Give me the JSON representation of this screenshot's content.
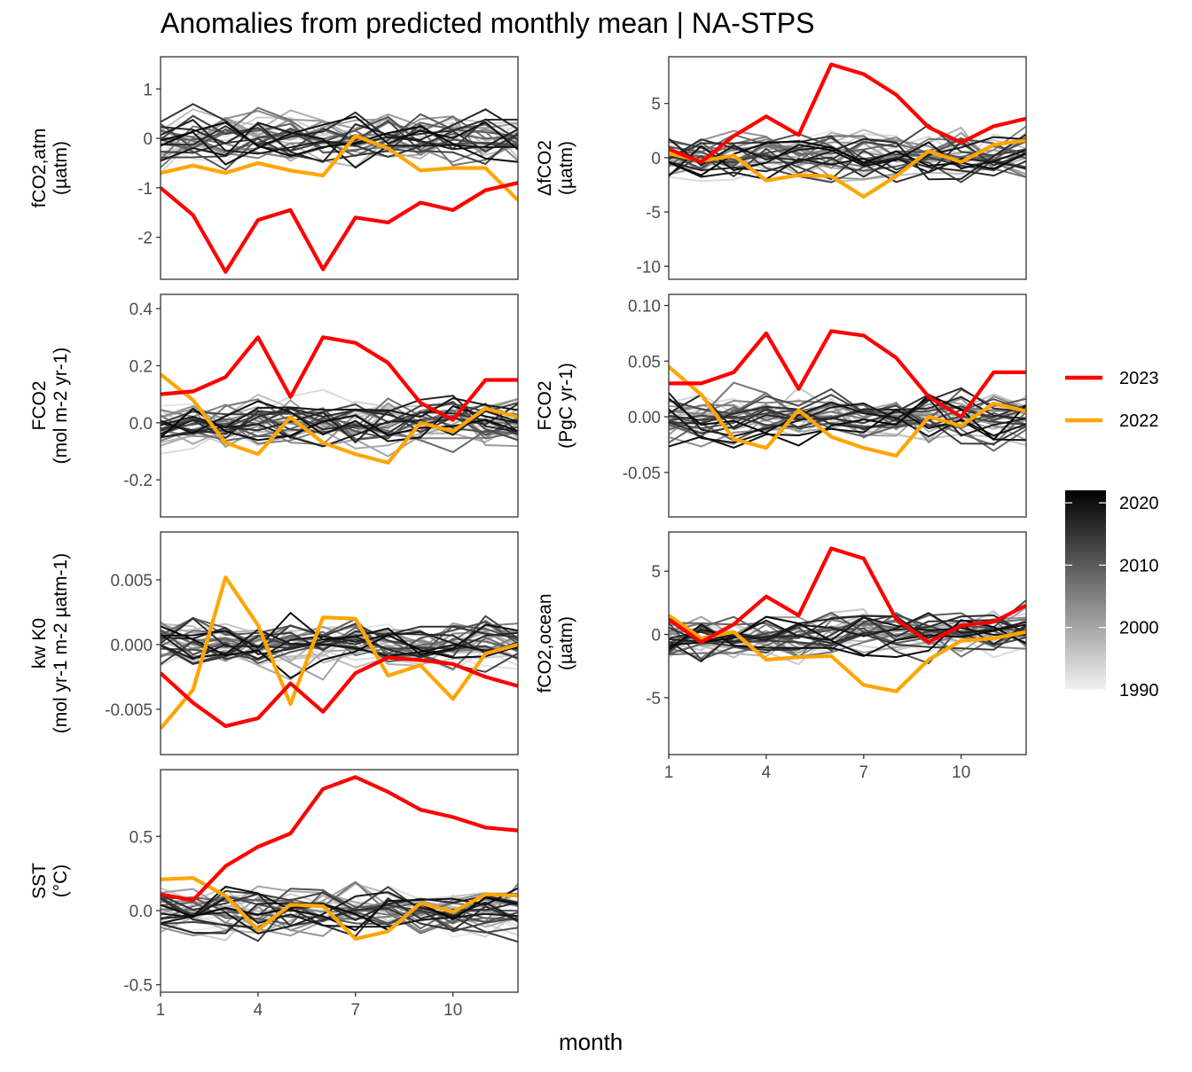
{
  "chart_data": {
    "title": "Anomalies from predicted monthly mean | NA-STPS",
    "xlabel": "month",
    "type": "line",
    "x": [
      1,
      2,
      3,
      4,
      5,
      6,
      7,
      8,
      9,
      10,
      11,
      12
    ],
    "x_ticks": [
      1,
      4,
      7,
      10
    ],
    "background_series_note_hidden": "",
    "legend": {
      "placement": "right",
      "highlight_series": [
        {
          "name": "2023",
          "color": "#ff0000"
        },
        {
          "name": "2022",
          "color": "#ffa500"
        }
      ],
      "colorbar": {
        "min": 1990,
        "max": 2022,
        "ticks": [
          2020,
          2010,
          2000,
          1990
        ],
        "low_color": "#f2f2f2",
        "high_color": "#000000"
      }
    },
    "panels": [
      {
        "id": "fco2atm",
        "ylabel_lines": [
          "fCO2,atm",
          "(µatm)"
        ],
        "ylim": [
          -2.85,
          1.65
        ],
        "yticks": [
          1,
          0,
          -1,
          -2
        ],
        "ytick_labels": [
          "1",
          "0",
          "-1",
          "-2"
        ],
        "series": [
          {
            "name": "2023",
            "values": [
              -1.0,
              -1.55,
              -2.7,
              -1.65,
              -1.45,
              -2.65,
              -1.6,
              -1.7,
              -1.3,
              -1.45,
              -1.05,
              -0.9
            ]
          },
          {
            "name": "2022",
            "values": [
              -0.7,
              -0.55,
              -0.7,
              -0.5,
              -0.65,
              -0.75,
              0.05,
              -0.2,
              -0.65,
              -0.6,
              -0.6,
              -1.25
            ]
          }
        ]
      },
      {
        "id": "dfco2",
        "ylabel_lines": [
          "ΔfCO2",
          "(µatm)"
        ],
        "ylim": [
          -11.2,
          9.3
        ],
        "yticks": [
          5,
          0,
          -5,
          -10
        ],
        "ytick_labels": [
          "5",
          "0",
          "-5",
          "-10"
        ],
        "series": [
          {
            "name": "2023",
            "values": [
              0.8,
              -0.4,
              2.0,
              3.8,
              2.1,
              8.6,
              7.7,
              5.8,
              2.8,
              1.4,
              2.9,
              3.6
            ]
          },
          {
            "name": "2022",
            "values": [
              0.4,
              -0.3,
              0.2,
              -2.1,
              -1.6,
              -1.7,
              -3.6,
              -1.7,
              0.6,
              -0.4,
              1.2,
              1.6
            ]
          }
        ]
      },
      {
        "id": "fco2flux",
        "ylabel_lines": [
          "FCO2",
          "(mol m-2 yr-1)"
        ],
        "ylim": [
          -0.33,
          0.45
        ],
        "yticks": [
          0.4,
          0.2,
          0.0,
          -0.2
        ],
        "ytick_labels": [
          "0.4",
          "0.2",
          "0.0",
          "-0.2"
        ],
        "series": [
          {
            "name": "2023",
            "values": [
              0.1,
              0.11,
              0.16,
              0.3,
              0.09,
              0.3,
              0.28,
              0.21,
              0.07,
              0.01,
              0.15,
              0.15
            ]
          },
          {
            "name": "2022",
            "values": [
              0.17,
              0.08,
              -0.07,
              -0.11,
              0.02,
              -0.07,
              -0.11,
              -0.14,
              0.0,
              -0.03,
              0.05,
              0.02
            ]
          }
        ]
      },
      {
        "id": "fco2pgc",
        "ylabel_lines": [
          "FCO2",
          "(PgC yr-1)"
        ],
        "ylim": [
          -0.09,
          0.11
        ],
        "yticks": [
          0.1,
          0.05,
          0.0,
          -0.05
        ],
        "ytick_labels": [
          "0.10",
          "0.05",
          "0.00",
          "-0.05"
        ],
        "series": [
          {
            "name": "2023",
            "values": [
              0.03,
              0.03,
              0.04,
              0.075,
              0.025,
              0.077,
              0.073,
              0.053,
              0.018,
              0.0,
              0.04,
              0.04
            ]
          },
          {
            "name": "2022",
            "values": [
              0.045,
              0.02,
              -0.02,
              -0.028,
              0.006,
              -0.018,
              -0.028,
              -0.035,
              0.0,
              -0.008,
              0.012,
              0.005
            ]
          }
        ]
      },
      {
        "id": "kwk0",
        "ylabel_lines": [
          "kw K0",
          "(mol yr-1 m-2 µatm-1)"
        ],
        "ylim": [
          -0.0085,
          0.0087
        ],
        "yticks": [
          0.005,
          0.0,
          -0.005
        ],
        "ytick_labels": [
          "0.005",
          "0.000",
          "-0.005"
        ],
        "series": [
          {
            "name": "2023",
            "values": [
              -0.0022,
              -0.0045,
              -0.0063,
              -0.0057,
              -0.003,
              -0.0052,
              -0.0022,
              -0.001,
              -0.0012,
              -0.0015,
              -0.0025,
              -0.0032
            ]
          },
          {
            "name": "2022",
            "values": [
              -0.0065,
              -0.0035,
              0.0052,
              0.0015,
              -0.0046,
              0.0021,
              0.002,
              -0.0024,
              -0.0016,
              -0.0042,
              -0.0007,
              0.0
            ]
          }
        ]
      },
      {
        "id": "fco2ocean",
        "ylabel_lines": [
          "fCO2,ocean",
          "(µatm)"
        ],
        "ylim": [
          -9.5,
          8.1
        ],
        "yticks": [
          5,
          0,
          -5
        ],
        "ytick_labels": [
          "5",
          "0",
          "-5"
        ],
        "series": [
          {
            "name": "2023",
            "values": [
              1.2,
              -0.6,
              0.8,
              3.0,
              1.5,
              6.8,
              6.0,
              1.2,
              -0.6,
              0.7,
              1.0,
              2.3
            ]
          },
          {
            "name": "2022",
            "values": [
              1.5,
              -0.3,
              0.2,
              -2.0,
              -1.8,
              -1.7,
              -4.0,
              -4.5,
              -2.0,
              -0.5,
              -0.3,
              0.2
            ]
          }
        ]
      },
      {
        "id": "sst",
        "ylabel_lines": [
          "SST",
          "(°C)"
        ],
        "ylim": [
          -0.55,
          0.95
        ],
        "yticks": [
          0.5,
          0.0,
          -0.5
        ],
        "ytick_labels": [
          "0.5",
          "0.0",
          "-0.5"
        ],
        "series": [
          {
            "name": "2023",
            "values": [
              0.11,
              0.07,
              0.3,
              0.43,
              0.52,
              0.82,
              0.9,
              0.8,
              0.68,
              0.63,
              0.56,
              0.54
            ]
          },
          {
            "name": "2022",
            "values": [
              0.21,
              0.22,
              0.1,
              -0.13,
              0.04,
              0.03,
              -0.19,
              -0.14,
              0.05,
              -0.01,
              0.11,
              0.1
            ]
          }
        ]
      }
    ]
  }
}
